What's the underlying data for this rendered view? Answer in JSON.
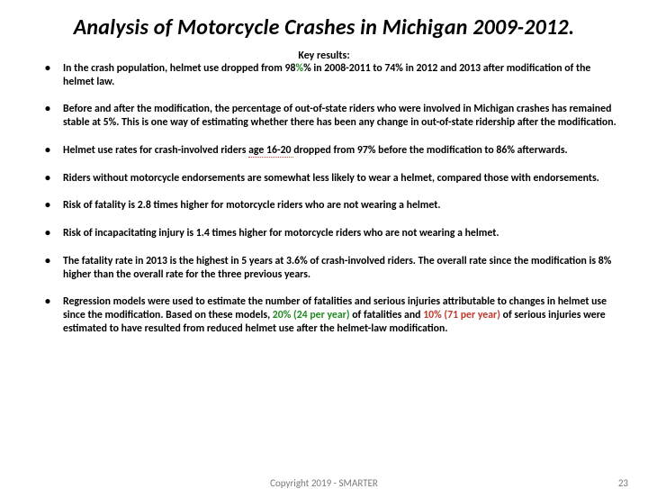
{
  "title": "Analysis of Motorcycle Crashes in Michigan 2009-2012.",
  "subheading": "Key results:",
  "bullets": {
    "b1a": "In the crash population, helmet use dropped from 98",
    "b1b": "% in 2008-2011 to 74% in 2012 and 2013 after modification of the helmet law.",
    "b2": "Before and after the modification, the percentage of out-of-state riders who were involved in Michigan crashes has remained stable at 5%. This is one way of estimating whether there has been any change in out-of-state ridership after the modification.",
    "b3a": "Helmet use rates for crash-involved riders ",
    "b3u": "age 16-20 ",
    "b3b": "dropped from 97% before the modification to 86% afterwards.",
    "b4": "Riders without motorcycle endorsements are somewhat less likely to wear a helmet, compared those with endorsements.",
    "b5": "Risk of fatality is 2.8 times higher for motorcycle riders who are not wearing a helmet.",
    "b6": "Risk of incapacitating injury is 1.4 times higher for motorcycle riders who are not wearing a helmet.",
    "b7": "The fatality rate in 2013 is the highest in 5 years at 3.6% of crash-involved riders. The overall rate since the modification is 8% higher than the overall rate for the three previous years.",
    "b8a": "Regression models were used to estimate the number of fatalities and serious injuries attributable to changes in helmet use since the modification. Based on these models, ",
    "b8g1": "20% (24 per year) ",
    "b8b": "of fatalities and ",
    "b8r1": "10% (71 per year) ",
    "b8c": "of serious injuries were estimated to have resulted from reduced helmet use after the helmet-law modification."
  },
  "footer": {
    "copyright": "Copyright 2019 - SMARTER",
    "page": "23"
  },
  "colors": {
    "green": "#228b22",
    "red": "#c0392b",
    "underline": "#d14836",
    "footer": "#7a7a7a",
    "bg": "#ffffff"
  }
}
